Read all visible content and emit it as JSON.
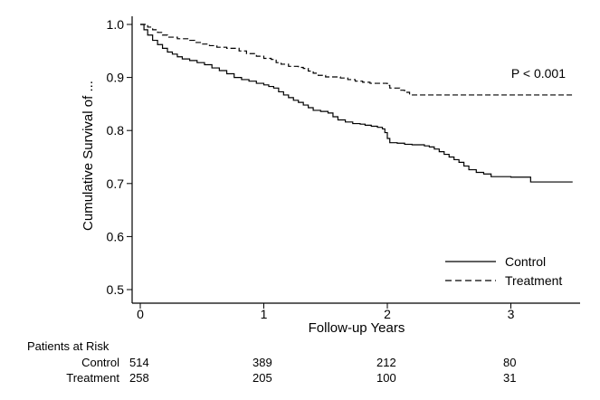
{
  "chart_data": {
    "type": "line",
    "xlabel": "Follow-up Years",
    "ylabel": "Cumulative Survival of ...",
    "xlim": [
      0,
      3.5
    ],
    "ylim": [
      0.5,
      1.0
    ],
    "xticks": [
      "0",
      "1",
      "2",
      "3"
    ],
    "yticks": [
      "0.5",
      "0.6",
      "0.7",
      "0.8",
      "0.9",
      "1.0"
    ],
    "annotation": "P < 0.001",
    "legend_position": "bottom-right",
    "series": [
      {
        "name": "Control",
        "style": "solid",
        "points": [
          [
            0.0,
            1.0
          ],
          [
            0.03,
            0.99
          ],
          [
            0.06,
            0.98
          ],
          [
            0.1,
            0.97
          ],
          [
            0.14,
            0.962
          ],
          [
            0.18,
            0.955
          ],
          [
            0.22,
            0.948
          ],
          [
            0.26,
            0.944
          ],
          [
            0.3,
            0.939
          ],
          [
            0.34,
            0.935
          ],
          [
            0.4,
            0.932
          ],
          [
            0.46,
            0.928
          ],
          [
            0.52,
            0.924
          ],
          [
            0.58,
            0.918
          ],
          [
            0.64,
            0.913
          ],
          [
            0.7,
            0.907
          ],
          [
            0.76,
            0.9
          ],
          [
            0.82,
            0.896
          ],
          [
            0.88,
            0.893
          ],
          [
            0.94,
            0.889
          ],
          [
            1.0,
            0.886
          ],
          [
            1.04,
            0.883
          ],
          [
            1.08,
            0.88
          ],
          [
            1.12,
            0.873
          ],
          [
            1.16,
            0.867
          ],
          [
            1.2,
            0.862
          ],
          [
            1.24,
            0.857
          ],
          [
            1.28,
            0.853
          ],
          [
            1.32,
            0.848
          ],
          [
            1.36,
            0.843
          ],
          [
            1.4,
            0.838
          ],
          [
            1.46,
            0.836
          ],
          [
            1.52,
            0.833
          ],
          [
            1.56,
            0.826
          ],
          [
            1.6,
            0.82
          ],
          [
            1.66,
            0.816
          ],
          [
            1.72,
            0.813
          ],
          [
            1.78,
            0.812
          ],
          [
            1.82,
            0.81
          ],
          [
            1.87,
            0.808
          ],
          [
            1.92,
            0.806
          ],
          [
            1.96,
            0.803
          ],
          [
            1.98,
            0.796
          ],
          [
            2.0,
            0.785
          ],
          [
            2.02,
            0.777
          ],
          [
            2.08,
            0.776
          ],
          [
            2.14,
            0.774
          ],
          [
            2.2,
            0.773
          ],
          [
            2.3,
            0.771
          ],
          [
            2.34,
            0.769
          ],
          [
            2.38,
            0.765
          ],
          [
            2.42,
            0.76
          ],
          [
            2.46,
            0.755
          ],
          [
            2.5,
            0.75
          ],
          [
            2.54,
            0.745
          ],
          [
            2.58,
            0.74
          ],
          [
            2.62,
            0.733
          ],
          [
            2.66,
            0.726
          ],
          [
            2.72,
            0.721
          ],
          [
            2.78,
            0.718
          ],
          [
            2.84,
            0.713
          ],
          [
            3.0,
            0.712
          ],
          [
            3.1,
            0.712
          ],
          [
            3.16,
            0.703
          ],
          [
            3.5,
            0.703
          ]
        ]
      },
      {
        "name": "Treatment",
        "style": "dashed",
        "points": [
          [
            0.0,
            1.0
          ],
          [
            0.06,
            0.995
          ],
          [
            0.1,
            0.99
          ],
          [
            0.14,
            0.985
          ],
          [
            0.18,
            0.98
          ],
          [
            0.22,
            0.976
          ],
          [
            0.3,
            0.973
          ],
          [
            0.4,
            0.97
          ],
          [
            0.44,
            0.966
          ],
          [
            0.5,
            0.963
          ],
          [
            0.56,
            0.96
          ],
          [
            0.62,
            0.957
          ],
          [
            0.7,
            0.955
          ],
          [
            0.8,
            0.95
          ],
          [
            0.86,
            0.945
          ],
          [
            0.94,
            0.94
          ],
          [
            1.0,
            0.936
          ],
          [
            1.06,
            0.934
          ],
          [
            1.1,
            0.928
          ],
          [
            1.14,
            0.925
          ],
          [
            1.2,
            0.921
          ],
          [
            1.28,
            0.919
          ],
          [
            1.32,
            0.917
          ],
          [
            1.36,
            0.912
          ],
          [
            1.4,
            0.908
          ],
          [
            1.44,
            0.904
          ],
          [
            1.5,
            0.901
          ],
          [
            1.62,
            0.899
          ],
          [
            1.68,
            0.896
          ],
          [
            1.74,
            0.893
          ],
          [
            1.8,
            0.891
          ],
          [
            1.86,
            0.889
          ],
          [
            2.0,
            0.885
          ],
          [
            2.02,
            0.88
          ],
          [
            2.1,
            0.876
          ],
          [
            2.14,
            0.872
          ],
          [
            2.18,
            0.867
          ],
          [
            2.3,
            0.867
          ],
          [
            3.0,
            0.867
          ],
          [
            3.5,
            0.867
          ]
        ]
      }
    ],
    "risk_table": {
      "title": "Patients at Risk",
      "rows": [
        {
          "label": "Control",
          "values": [
            "514",
            "389",
            "212",
            "80"
          ]
        },
        {
          "label": "Treatment",
          "values": [
            "258",
            "205",
            "100",
            "31"
          ]
        }
      ]
    }
  }
}
